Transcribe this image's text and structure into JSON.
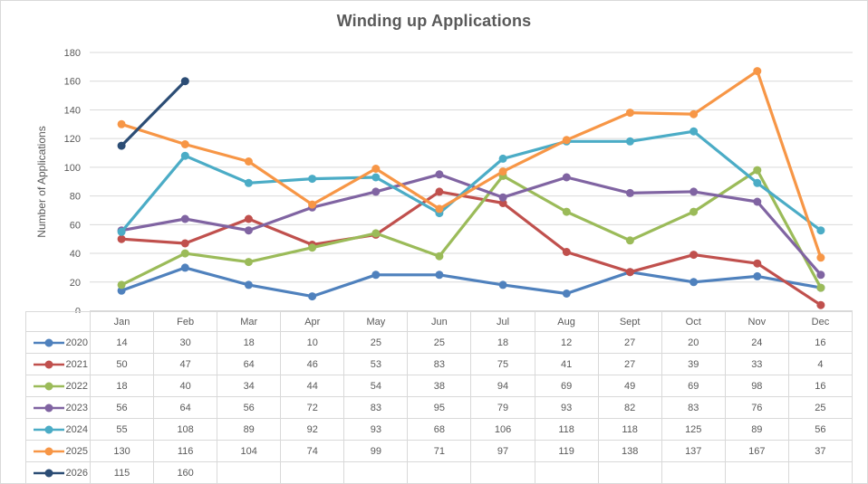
{
  "chart_data": {
    "type": "line",
    "title": "Winding up Applications",
    "xlabel": "",
    "ylabel": "Number of Applications",
    "ylim": [
      0,
      180
    ],
    "ytick_step": 20,
    "grid": true,
    "grid_color": "#d9d9d9",
    "text_color": "#595959",
    "legend_position": "data-table-left-column",
    "marker": "circle",
    "categories": [
      "Jan",
      "Feb",
      "Mar",
      "Apr",
      "May",
      "Jun",
      "Jul",
      "Aug",
      "Sept",
      "Oct",
      "Nov",
      "Dec"
    ],
    "series": [
      {
        "name": "2020",
        "color": "#4F81BD",
        "values": [
          14,
          30,
          18,
          10,
          25,
          25,
          18,
          12,
          27,
          20,
          24,
          16
        ]
      },
      {
        "name": "2021",
        "color": "#C0504D",
        "values": [
          50,
          47,
          64,
          46,
          53,
          83,
          75,
          41,
          27,
          39,
          33,
          4
        ]
      },
      {
        "name": "2022",
        "color": "#9BBB59",
        "values": [
          18,
          40,
          34,
          44,
          54,
          38,
          94,
          69,
          49,
          69,
          98,
          16
        ]
      },
      {
        "name": "2023",
        "color": "#8064A2",
        "values": [
          56,
          64,
          56,
          72,
          83,
          95,
          79,
          93,
          82,
          83,
          76,
          25
        ]
      },
      {
        "name": "2024",
        "color": "#4BACC6",
        "values": [
          55,
          108,
          89,
          92,
          93,
          68,
          106,
          118,
          118,
          125,
          89,
          56
        ]
      },
      {
        "name": "2025",
        "color": "#F79646",
        "values": [
          130,
          116,
          104,
          74,
          99,
          71,
          97,
          119,
          138,
          137,
          167,
          37
        ]
      },
      {
        "name": "2026",
        "color": "#2C4D75",
        "values": [
          115,
          160,
          null,
          null,
          null,
          null,
          null,
          null,
          null,
          null,
          null,
          null
        ]
      }
    ]
  }
}
